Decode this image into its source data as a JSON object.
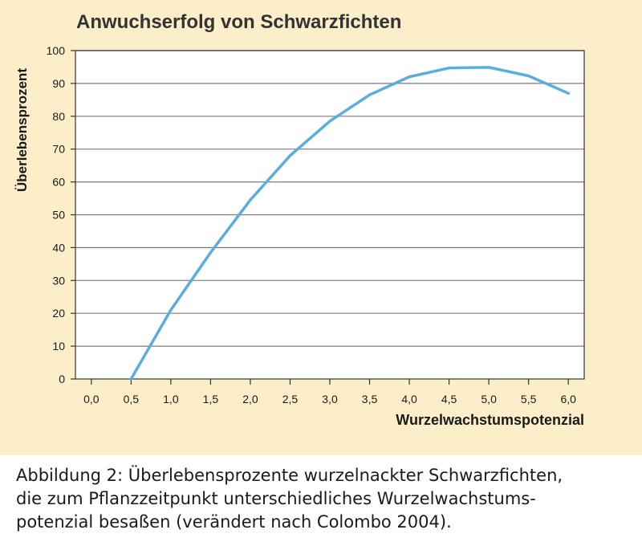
{
  "chart_data": {
    "type": "line",
    "title": "Anwuchserfolg von Schwarzfichten",
    "xlabel": "Wurzelwachstumspotenzial",
    "ylabel": "Überlebensprozent",
    "xlim": [
      -0.2,
      6.2
    ],
    "ylim": [
      0,
      100
    ],
    "x_ticks": [
      0.0,
      0.5,
      1.0,
      1.5,
      2.0,
      2.5,
      3.0,
      3.5,
      4.0,
      4.5,
      5.0,
      5.5,
      6.0
    ],
    "x_tick_labels": [
      "0,0",
      "0,5",
      "1,0",
      "1,5",
      "2,0",
      "2,5",
      "3,0",
      "3,5",
      "4,0",
      "4,5",
      "5,0",
      "5,5",
      "6,0"
    ],
    "y_ticks": [
      0,
      10,
      20,
      30,
      40,
      50,
      60,
      70,
      80,
      90,
      100
    ],
    "y_tick_labels": [
      "0",
      "10",
      "20",
      "30",
      "40",
      "50",
      "60",
      "70",
      "80",
      "90",
      "100"
    ],
    "grid": true,
    "series": [
      {
        "color": "#5aaedf",
        "x": [
          0.5,
          1.0,
          1.5,
          2.0,
          2.5,
          3.0,
          3.5,
          4.0,
          4.5,
          5.0,
          5.5,
          6.0
        ],
        "values": [
          0,
          21,
          38.5,
          54.5,
          68,
          78.5,
          86.5,
          92,
          94.7,
          94.9,
          92.3,
          87
        ]
      }
    ]
  },
  "caption": "Abbildung 2: Überlebensprozente wurzelnackter Schwarzfichten,\ndie zum Pflanzzeitpunkt unterschiedliches Wurzelwachstums-\npotenzial besaßen (verändert nach Colombo 2004).",
  "colors": {
    "panel_background": "#fbeec8",
    "plot_background": "#ffffff",
    "grid": "#7a7a7a",
    "line": "#5aaedf"
  }
}
